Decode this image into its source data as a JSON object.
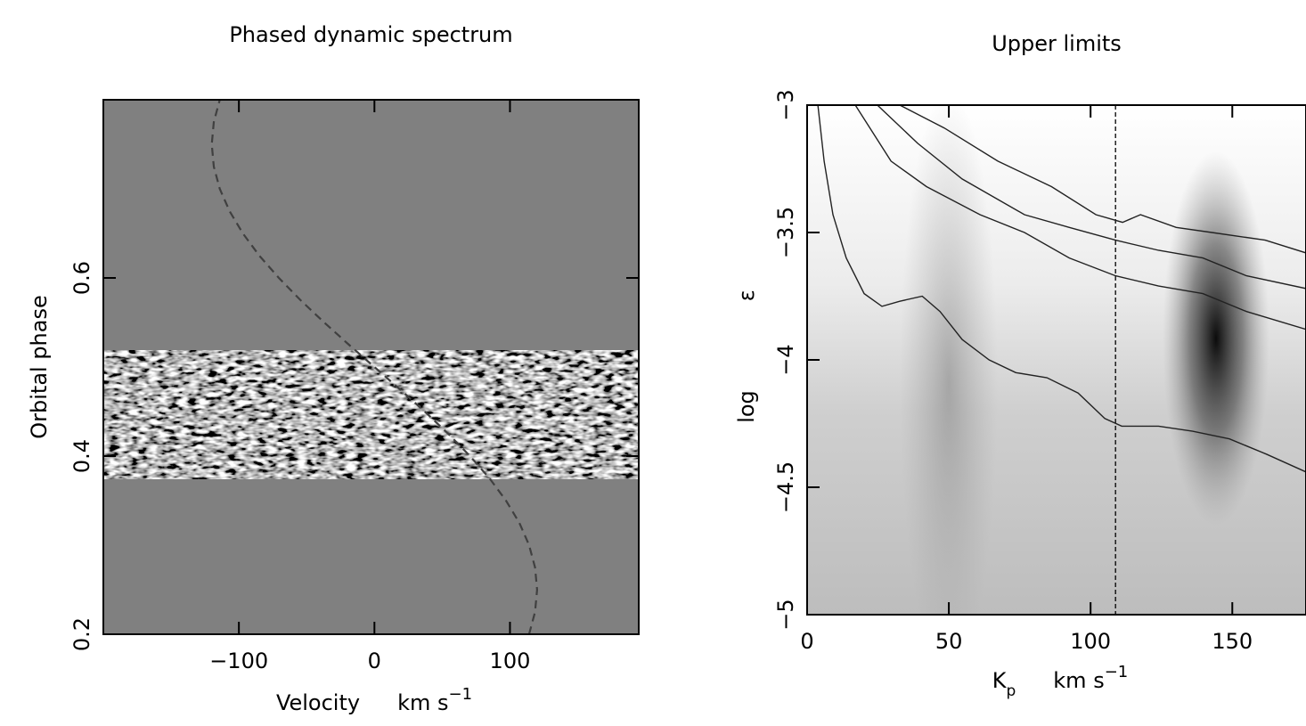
{
  "chart_data": [
    {
      "type": "line",
      "title": "Phased dynamic spectrum",
      "x_label": "Velocity",
      "x_unit": "km s",
      "x_unit_exp": "−1",
      "y_label": "Orbital phase",
      "xlim": [
        -200,
        195
      ],
      "ylim": [
        0.2,
        0.8
      ],
      "xticks": [
        {
          "value": -100,
          "label": "−100"
        },
        0,
        100
      ],
      "yticks": [
        0.2,
        0.4,
        0.6
      ],
      "observed_range": [
        0.374,
        0.519
      ],
      "background": "#808080",
      "series": [
        {
          "color": "#404040",
          "dashed": true,
          "x": [
            114.1,
            118.5,
            120,
            118.5,
            114.1,
            106.9,
            97.1,
            84.9,
            70.5,
            54.5,
            37.1,
            18.8,
            0,
            -18.8,
            -37.1,
            -54.5,
            -70.5,
            -84.9,
            -97.1,
            -106.9,
            -114.1,
            -118.5,
            -120,
            -118.5,
            -114.1
          ],
          "values": [
            0.2,
            0.225,
            0.25,
            0.275,
            0.3,
            0.325,
            0.35,
            0.375,
            0.4,
            0.425,
            0.45,
            0.475,
            0.5,
            0.525,
            0.55,
            0.575,
            0.6,
            0.625,
            0.65,
            0.675,
            0.7,
            0.725,
            0.75,
            0.775,
            0.8
          ]
        }
      ]
    },
    {
      "type": "line",
      "title": "Upper limits",
      "x_label": "K",
      "x_label_sub": "p",
      "x_unit": "km s",
      "x_unit_exp": "−1",
      "y_label": "log",
      "y_label_symbol": "ε",
      "xlim": [
        0,
        176
      ],
      "ylim": [
        -5,
        -3
      ],
      "xticks": [
        0,
        50,
        100,
        150
      ],
      "yticks": [
        {
          "value": -5,
          "label": "−5"
        },
        {
          "value": -4.5,
          "label": "−4.5"
        },
        {
          "value": -4,
          "label": "−4"
        },
        {
          "value": -3.5,
          "label": "−3.5"
        },
        {
          "value": -3,
          "label": "−3"
        }
      ],
      "vline": 108.8,
      "series": [
        {
          "color": "#222222",
          "x": [
            3.8,
            6,
            9.1,
            13.8,
            20.1,
            26.4,
            32.7,
            40.6,
            46.9,
            54.7,
            64.2,
            73.6,
            84.6,
            95.6,
            105,
            111,
            124,
            136,
            149,
            162,
            176
          ],
          "values": [
            -3.0,
            -3.22,
            -3.43,
            -3.6,
            -3.74,
            -3.79,
            -3.77,
            -3.75,
            -3.81,
            -3.92,
            -4.0,
            -4.05,
            -4.07,
            -4.13,
            -4.23,
            -4.26,
            -4.26,
            -4.28,
            -4.31,
            -4.37,
            -4.44
          ]
        },
        {
          "color": "#222222",
          "x": [
            17,
            29.6,
            42.1,
            61,
            76.7,
            92.5,
            108.8,
            124,
            139.6,
            155,
            176
          ],
          "values": [
            -3.0,
            -3.22,
            -3.32,
            -3.43,
            -3.5,
            -3.6,
            -3.67,
            -3.71,
            -3.74,
            -3.81,
            -3.88
          ]
        },
        {
          "color": "#222222",
          "x": [
            24.8,
            39,
            54.7,
            76.7,
            92.5,
            108.8,
            124,
            139.6,
            155,
            176
          ],
          "values": [
            -3.0,
            -3.15,
            -3.29,
            -3.43,
            -3.48,
            -3.53,
            -3.57,
            -3.6,
            -3.67,
            -3.72
          ]
        },
        {
          "color": "#222222",
          "x": [
            32.7,
            48.4,
            67.3,
            86.2,
            101.9,
            111.3,
            117.6,
            130.2,
            142.8,
            161.6,
            176
          ],
          "values": [
            -3.0,
            -3.09,
            -3.22,
            -3.32,
            -3.43,
            -3.46,
            -3.43,
            -3.48,
            -3.5,
            -3.53,
            -3.58
          ]
        }
      ]
    }
  ]
}
